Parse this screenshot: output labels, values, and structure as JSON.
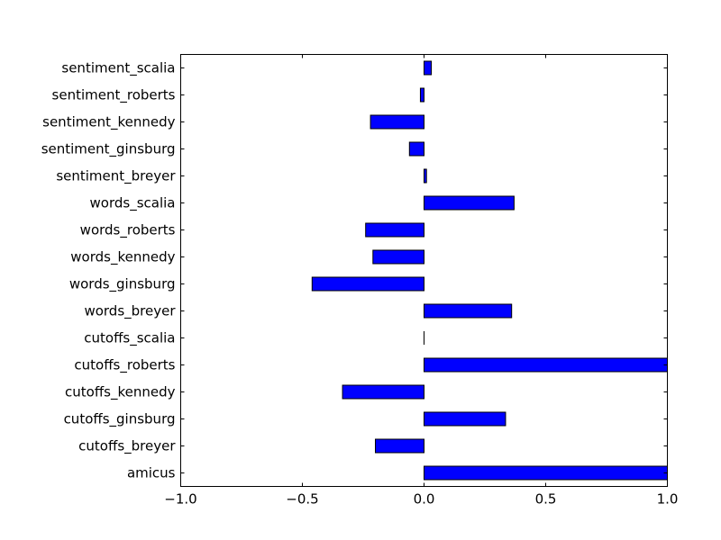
{
  "chart_data": {
    "type": "bar",
    "orientation": "horizontal",
    "categories": [
      "sentiment_scalia",
      "sentiment_roberts",
      "sentiment_kennedy",
      "sentiment_ginsburg",
      "sentiment_breyer",
      "words_scalia",
      "words_roberts",
      "words_kennedy",
      "words_ginsburg",
      "words_breyer",
      "cutoffs_scalia",
      "cutoffs_roberts",
      "cutoffs_kennedy",
      "cutoffs_ginsburg",
      "cutoffs_breyer",
      "amicus"
    ],
    "values": [
      0.03,
      -0.015,
      -0.22,
      -0.06,
      0.01,
      0.37,
      -0.24,
      -0.21,
      -0.46,
      0.36,
      0.0,
      1.0,
      -0.335,
      0.335,
      -0.2,
      1.0
    ],
    "xlim": [
      -1.0,
      1.0
    ],
    "xticks": [
      -1.0,
      -0.5,
      0.0,
      0.5,
      1.0
    ],
    "xtick_labels": [
      "−1.0",
      "−0.5",
      "0.0",
      "0.5",
      "1.0"
    ],
    "title": "",
    "xlabel": "",
    "ylabel": "",
    "bar_color": "#0000ff",
    "edge_color": "#000000",
    "grid": false,
    "legend": "none"
  }
}
